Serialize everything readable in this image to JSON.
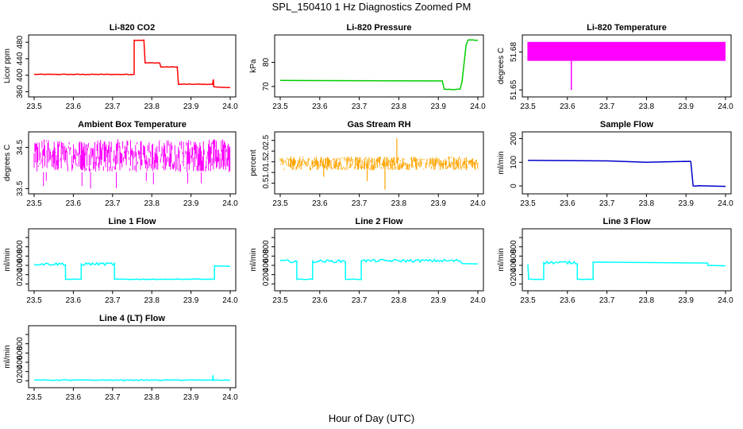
{
  "figure": {
    "title": "SPL_150410  1 Hz Diagnostics Zoomed PM",
    "xlabel": "Hour of Day (UTC)"
  },
  "chart_data": [
    {
      "id": "co2",
      "type": "line",
      "title": "Li-820 CO2",
      "ylabel": "Licor ppm",
      "color": "#ff0000",
      "xlim": [
        23.5,
        24.0
      ],
      "ylim": [
        355,
        490
      ],
      "xticks": [
        23.5,
        23.6,
        23.7,
        23.8,
        23.9,
        24.0
      ],
      "xtick_labels": [
        "23.5",
        "23.6",
        "23.7",
        "23.8",
        "23.9",
        "24.0"
      ],
      "yticks": [
        360,
        400,
        440,
        480
      ],
      "ytick_labels": [
        "360",
        "400",
        "440",
        "480"
      ],
      "series": [
        {
          "name": "CO2",
          "points": [
            [
              23.5,
              402
            ],
            [
              23.6,
              402
            ],
            [
              23.755,
              402
            ],
            [
              23.755,
              485
            ],
            [
              23.78,
              485
            ],
            [
              23.783,
              430
            ],
            [
              23.82,
              430
            ],
            [
              23.823,
              420
            ],
            [
              23.865,
              420
            ],
            [
              23.868,
              378
            ],
            [
              23.955,
              378
            ],
            [
              23.957,
              390
            ],
            [
              23.958,
              372
            ],
            [
              23.97,
              371
            ],
            [
              24.0,
              370
            ]
          ]
        }
      ]
    },
    {
      "id": "pressure",
      "type": "line",
      "title": "Li-820 Pressure",
      "ylabel": "kPa",
      "color": "#00cc00",
      "xlim": [
        23.5,
        24.0
      ],
      "ylim": [
        67,
        90
      ],
      "xticks": [
        23.5,
        23.6,
        23.7,
        23.8,
        23.9,
        24.0
      ],
      "xtick_labels": [
        "23.5",
        "23.6",
        "23.7",
        "23.8",
        "23.9",
        "24.0"
      ],
      "yticks": [
        70,
        80
      ],
      "ytick_labels": [
        "70",
        "80"
      ],
      "series": [
        {
          "name": "Pressure",
          "points": [
            [
              23.5,
              72.5
            ],
            [
              23.7,
              72.4
            ],
            [
              23.91,
              72.3
            ],
            [
              23.915,
              68.8
            ],
            [
              23.955,
              68.8
            ],
            [
              23.96,
              72
            ],
            [
              23.97,
              87
            ],
            [
              23.975,
              89.2
            ],
            [
              24.0,
              89.2
            ]
          ]
        }
      ]
    },
    {
      "id": "licor_temp",
      "type": "line",
      "title": "Li-820 Temperature",
      "ylabel": "degrees C",
      "color": "#ff00ff",
      "xlim": [
        23.5,
        24.0
      ],
      "ylim": [
        51.647,
        51.691
      ],
      "xticks": [
        23.5,
        23.6,
        23.7,
        23.8,
        23.9,
        24.0
      ],
      "xtick_labels": [
        "23.5",
        "23.6",
        "23.7",
        "23.8",
        "23.9",
        "24.0"
      ],
      "yticks": [
        51.65,
        51.68
      ],
      "ytick_labels": [
        "51.65",
        "51.68"
      ],
      "series": [
        {
          "name": "Licor Temp",
          "low": 51.673,
          "high": 51.688,
          "dip_x": 23.61,
          "dip_y": 51.65
        }
      ]
    },
    {
      "id": "box_temp",
      "type": "line",
      "title": "Ambient Box Temperature",
      "ylabel": "degrees C",
      "color": "#ff00ff",
      "xlim": [
        23.5,
        24.0
      ],
      "ylim": [
        33.45,
        34.8
      ],
      "xticks": [
        23.5,
        23.6,
        23.7,
        23.8,
        23.9,
        24.0
      ],
      "xtick_labels": [
        "23.5",
        "23.6",
        "23.7",
        "23.8",
        "23.9",
        "24.0"
      ],
      "yticks": [
        33.5,
        34.5
      ],
      "ytick_labels": [
        "33.5",
        "34.5"
      ],
      "series": [
        {
          "name": "Box Temp",
          "low": 33.9,
          "high": 34.7,
          "min": 33.5
        }
      ]
    },
    {
      "id": "rh",
      "type": "line",
      "title": "Gas Stream RH",
      "ylabel": "percent",
      "color": "#ffa500",
      "xlim": [
        23.5,
        24.0
      ],
      "ylim": [
        0.15,
        2.75
      ],
      "xticks": [
        23.5,
        23.6,
        23.7,
        23.8,
        23.9,
        24.0
      ],
      "xtick_labels": [
        "23.5",
        "23.6",
        "23.7",
        "23.8",
        "23.9",
        "24.0"
      ],
      "yticks": [
        0.5,
        1.0,
        1.5,
        2.0,
        2.5
      ],
      "ytick_labels": [
        "0.5",
        "1.0",
        "1.5",
        "2.0",
        "2.5"
      ],
      "series": [
        {
          "name": "RH",
          "low": 1.1,
          "high": 1.75,
          "spikes": [
            [
              23.765,
              0.2
            ],
            [
              23.795,
              2.6
            ],
            [
              23.72,
              0.6
            ],
            [
              23.61,
              0.8
            ]
          ]
        }
      ]
    },
    {
      "id": "sample_flow",
      "type": "line",
      "title": "Sample Flow",
      "ylabel": "ml/min",
      "color": "#0000cc",
      "xlim": [
        23.5,
        24.0
      ],
      "ylim": [
        -20,
        215
      ],
      "xticks": [
        23.5,
        23.6,
        23.7,
        23.8,
        23.9,
        24.0
      ],
      "xtick_labels": [
        "23.5",
        "23.6",
        "23.7",
        "23.8",
        "23.9",
        "24.0"
      ],
      "yticks": [
        0,
        100,
        200
      ],
      "ytick_labels": [
        "0",
        "100",
        "200"
      ],
      "series": [
        {
          "name": "Sample Flow",
          "points": [
            [
              23.5,
              108
            ],
            [
              23.7,
              106
            ],
            [
              23.8,
              100
            ],
            [
              23.9,
              104
            ],
            [
              23.912,
              104
            ],
            [
              23.918,
              0
            ],
            [
              23.93,
              0
            ],
            [
              24.0,
              -2
            ]
          ]
        }
      ]
    },
    {
      "id": "line1",
      "type": "line",
      "title": "Line 1 Flow",
      "ylabel": "ml/min",
      "color": "#00ffff",
      "xlim": [
        23.5,
        24.0
      ],
      "ylim": [
        -80,
        1120
      ],
      "xticks": [
        23.5,
        23.6,
        23.7,
        23.8,
        23.9,
        24.0
      ],
      "xtick_labels": [
        "23.5",
        "23.6",
        "23.7",
        "23.8",
        "23.9",
        "24.0"
      ],
      "yticks": [
        0,
        200,
        400,
        600,
        800,
        1000
      ],
      "ytick_labels": [
        "0",
        "200",
        "400",
        "600",
        "800",
        ""
      ],
      "series": [
        {
          "name": "Line 1",
          "points": [
            [
              23.5,
              430
            ],
            [
              23.58,
              430
            ],
            [
              23.58,
              100
            ],
            [
              23.62,
              100
            ],
            [
              23.62,
              430
            ],
            [
              23.705,
              430
            ],
            [
              23.705,
              100
            ],
            [
              23.96,
              100
            ],
            [
              23.96,
              390
            ],
            [
              24.0,
              380
            ]
          ]
        }
      ]
    },
    {
      "id": "line2",
      "type": "line",
      "title": "Line 2 Flow",
      "ylabel": "ml/min",
      "color": "#00ffff",
      "xlim": [
        23.5,
        24.0
      ],
      "ylim": [
        -80,
        1120
      ],
      "xticks": [
        23.5,
        23.6,
        23.7,
        23.8,
        23.9,
        24.0
      ],
      "xtick_labels": [
        "23.5",
        "23.6",
        "23.7",
        "23.8",
        "23.9",
        "24.0"
      ],
      "yticks": [
        0,
        200,
        400,
        600,
        800,
        1000
      ],
      "ytick_labels": [
        "0",
        "200",
        "400",
        "600",
        "800",
        ""
      ],
      "series": [
        {
          "name": "Line 2",
          "points": [
            [
              23.5,
              490
            ],
            [
              23.542,
              490
            ],
            [
              23.542,
              100
            ],
            [
              23.582,
              100
            ],
            [
              23.582,
              490
            ],
            [
              23.665,
              490
            ],
            [
              23.665,
              100
            ],
            [
              23.705,
              100
            ],
            [
              23.705,
              500
            ],
            [
              23.955,
              500
            ],
            [
              23.96,
              440
            ],
            [
              24.0,
              430
            ]
          ]
        }
      ]
    },
    {
      "id": "line3",
      "type": "line",
      "title": "Line 3 Flow",
      "ylabel": "ml/min",
      "color": "#00ffff",
      "xlim": [
        23.5,
        24.0
      ],
      "ylim": [
        -80,
        1120
      ],
      "xticks": [
        23.5,
        23.6,
        23.7,
        23.8,
        23.9,
        24.0
      ],
      "xtick_labels": [
        "23.5",
        "23.6",
        "23.7",
        "23.8",
        "23.9",
        "24.0"
      ],
      "yticks": [
        0,
        200,
        400,
        600,
        800,
        1000
      ],
      "ytick_labels": [
        "0",
        "200",
        "400",
        "600",
        "800",
        ""
      ],
      "series": [
        {
          "name": "Line 3",
          "points": [
            [
              23.5,
              420
            ],
            [
              23.502,
              100
            ],
            [
              23.54,
              100
            ],
            [
              23.54,
              460
            ],
            [
              23.625,
              460
            ],
            [
              23.625,
              100
            ],
            [
              23.665,
              100
            ],
            [
              23.665,
              470
            ],
            [
              23.955,
              450
            ],
            [
              23.955,
              400
            ],
            [
              24.0,
              390
            ]
          ]
        }
      ]
    },
    {
      "id": "line4",
      "type": "line",
      "title": "Line 4 (LT) Flow",
      "ylabel": "ml/min",
      "color": "#00ffff",
      "xlim": [
        23.5,
        24.0
      ],
      "ylim": [
        -80,
        1120
      ],
      "xticks": [
        23.5,
        23.6,
        23.7,
        23.8,
        23.9,
        24.0
      ],
      "xtick_labels": [
        "23.5",
        "23.6",
        "23.7",
        "23.8",
        "23.9",
        "24.0"
      ],
      "yticks": [
        0,
        200,
        400,
        600,
        800,
        1000
      ],
      "ytick_labels": [
        "0",
        "200",
        "400",
        "600",
        "800",
        ""
      ],
      "series": [
        {
          "name": "Line 4",
          "points": [
            [
              23.5,
              15
            ],
            [
              23.955,
              15
            ],
            [
              23.956,
              120
            ],
            [
              23.957,
              15
            ],
            [
              24.0,
              15
            ]
          ]
        }
      ]
    }
  ]
}
